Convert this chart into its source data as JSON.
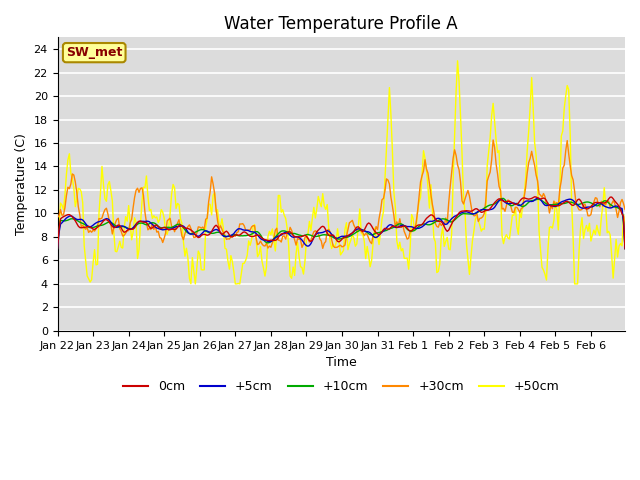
{
  "title": "Water Temperature Profile A",
  "xlabel": "Time",
  "ylabel": "Temperature (C)",
  "ylim": [
    0,
    25
  ],
  "yticks": [
    0,
    2,
    4,
    6,
    8,
    10,
    12,
    14,
    16,
    18,
    20,
    22,
    24
  ],
  "annotation_text": "SW_met",
  "annotation_bg": "#FFFF99",
  "annotation_border": "#AA8800",
  "annotation_text_color": "#880000",
  "colors": {
    "0cm": "#CC0000",
    "+5cm": "#0000CC",
    "+10cm": "#00AA00",
    "+30cm": "#FF8800",
    "+50cm": "#FFFF00"
  },
  "line_width": 1.0,
  "plot_bg": "#DCDCDC",
  "fig_bg": "#FFFFFF",
  "grid_color": "#FFFFFF",
  "legend_labels": [
    "0cm",
    "+5cm",
    "+10cm",
    "+30cm",
    "+50cm"
  ],
  "day_labels": [
    "Jan 22",
    "Jan 23",
    "Jan 24",
    "Jan 25",
    "Jan 26",
    "Jan 27",
    "Jan 28",
    "Jan 29",
    "Jan 30",
    "Jan 31",
    "Feb 1",
    "Feb 2",
    "Feb 3",
    "Feb 4",
    "Feb 5",
    "Feb 6"
  ],
  "tick_fontsize": 8,
  "label_fontsize": 9,
  "title_fontsize": 12
}
